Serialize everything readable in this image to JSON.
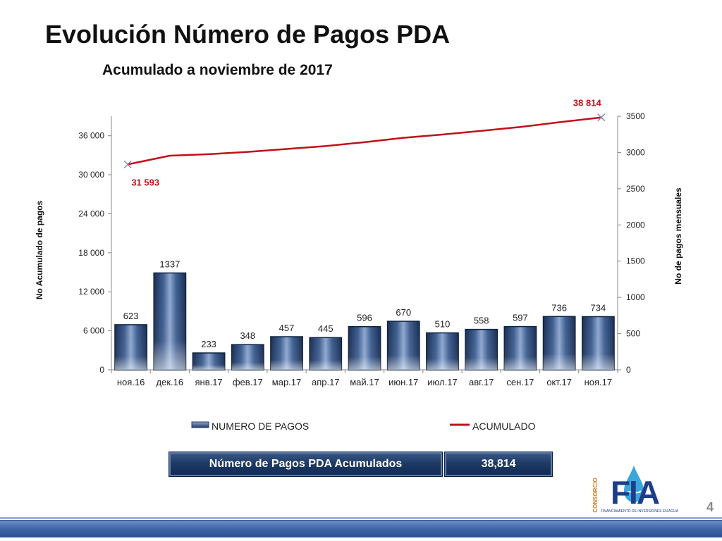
{
  "header": {
    "title": "Evolución Número de Pagos PDA",
    "subtitle": "Acumulado a noviembre de 2017"
  },
  "chart_data": {
    "type": "bar",
    "categories": [
      "ноя.16",
      "дек.16",
      "янв.17",
      "фев.17",
      "мар.17",
      "апр.17",
      "май.17",
      "июн.17",
      "июл.17",
      "авг.17",
      "сен.17",
      "окт.17",
      "ноя.17"
    ],
    "series": [
      {
        "name": "NUMERO DE PAGOS",
        "type": "bar",
        "axis": "right",
        "values": [
          623,
          1337,
          233,
          348,
          457,
          445,
          596,
          670,
          510,
          558,
          597,
          736,
          734
        ],
        "color": "#1f3a66"
      },
      {
        "name": "ACUMULADO",
        "type": "line",
        "axis": "left",
        "values": [
          31593,
          32930,
          33163,
          33511,
          33968,
          34413,
          35009,
          35679,
          36189,
          36747,
          37344,
          38080,
          38814
        ],
        "color": "#c0101a"
      }
    ],
    "line_labels": {
      "first": "31 593",
      "last": "38 814"
    },
    "y_left": {
      "label": "No Acumulado de pagos",
      "lim": [
        0,
        39000
      ],
      "ticks": [
        0,
        6000,
        12000,
        18000,
        24000,
        30000,
        36000
      ],
      "tick_labels": [
        "0",
        "6 000",
        "12 000",
        "18 000",
        "24 000",
        "30 000",
        "36 000"
      ]
    },
    "y_right": {
      "label": "No de pagos mensuales",
      "lim": [
        0,
        3500
      ],
      "ticks": [
        0,
        500,
        1000,
        1500,
        2000,
        2500,
        3000,
        3500
      ],
      "tick_labels": [
        "0",
        "500",
        "1000",
        "1500",
        "2000",
        "2500",
        "3000",
        "3500"
      ]
    },
    "legend_position": "bottom",
    "grid": false
  },
  "summary": {
    "label": "Número de Pagos PDA Acumulados",
    "value": "38,814"
  },
  "logo": {
    "vertical_text": "CONSORCIO",
    "letters": "FIA",
    "tagline": "FINANCIAMIENTO DE INVERSIONES EN AGUA"
  },
  "page_number": "4",
  "colors": {
    "bar": "#1f3a66",
    "line": "#c0101a",
    "footer": "#3e64a8"
  }
}
